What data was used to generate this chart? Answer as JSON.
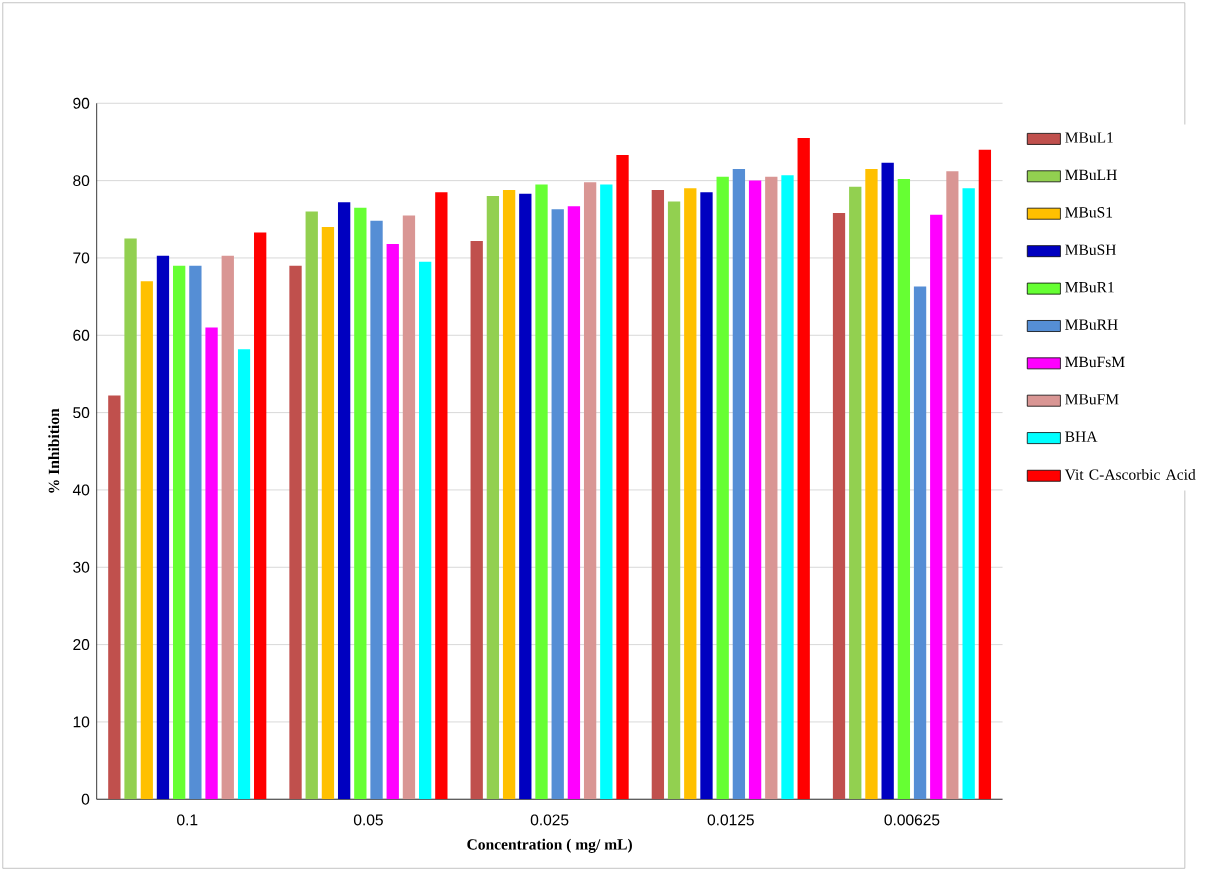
{
  "chart_data": {
    "type": "bar",
    "xlabel": "Concentration ( mg/ mL)",
    "ylabel": "% Inhibition",
    "categories": [
      "0.1",
      "0.05",
      "0.025",
      "0.0125",
      "0.00625"
    ],
    "ylim": [
      0,
      90
    ],
    "yticks": [
      0,
      10,
      20,
      30,
      40,
      50,
      60,
      70,
      80,
      90
    ],
    "grid": "y",
    "legend": "right",
    "series": [
      {
        "name": "MBuL1",
        "color": "#c0504d",
        "values": [
          52.2,
          69,
          72.2,
          78.8,
          75.8
        ]
      },
      {
        "name": "MBuLH",
        "color": "#92d050",
        "values": [
          72.5,
          76,
          78,
          77.3,
          79.2
        ]
      },
      {
        "name": "MBuS1",
        "color": "#ffc000",
        "values": [
          67,
          74,
          78.8,
          79,
          81.5
        ]
      },
      {
        "name": "MBuSH",
        "color": "#0000c0",
        "values": [
          70.3,
          77.2,
          78.3,
          78.5,
          82.3
        ]
      },
      {
        "name": "MBuR1",
        "color": "#66ff33",
        "values": [
          69,
          76.5,
          79.5,
          80.5,
          80.2
        ]
      },
      {
        "name": "MBuRH",
        "color": "#558ed5",
        "values": [
          69,
          74.8,
          76.3,
          81.5,
          66.3
        ]
      },
      {
        "name": "MBuFsM",
        "color": "#ff00ff",
        "values": [
          61,
          71.8,
          76.7,
          80,
          75.6
        ]
      },
      {
        "name": "MBuFM",
        "color": "#d99694",
        "values": [
          70.3,
          75.5,
          79.8,
          80.5,
          81.2
        ]
      },
      {
        "name": "BHA",
        "color": "#00ffff",
        "values": [
          58.2,
          69.5,
          79.5,
          80.7,
          79
        ]
      },
      {
        "name": "Vit C-Ascorbic Acid",
        "color": "#ff0000",
        "values": [
          73.3,
          78.5,
          83.3,
          85.5,
          84
        ]
      }
    ]
  }
}
